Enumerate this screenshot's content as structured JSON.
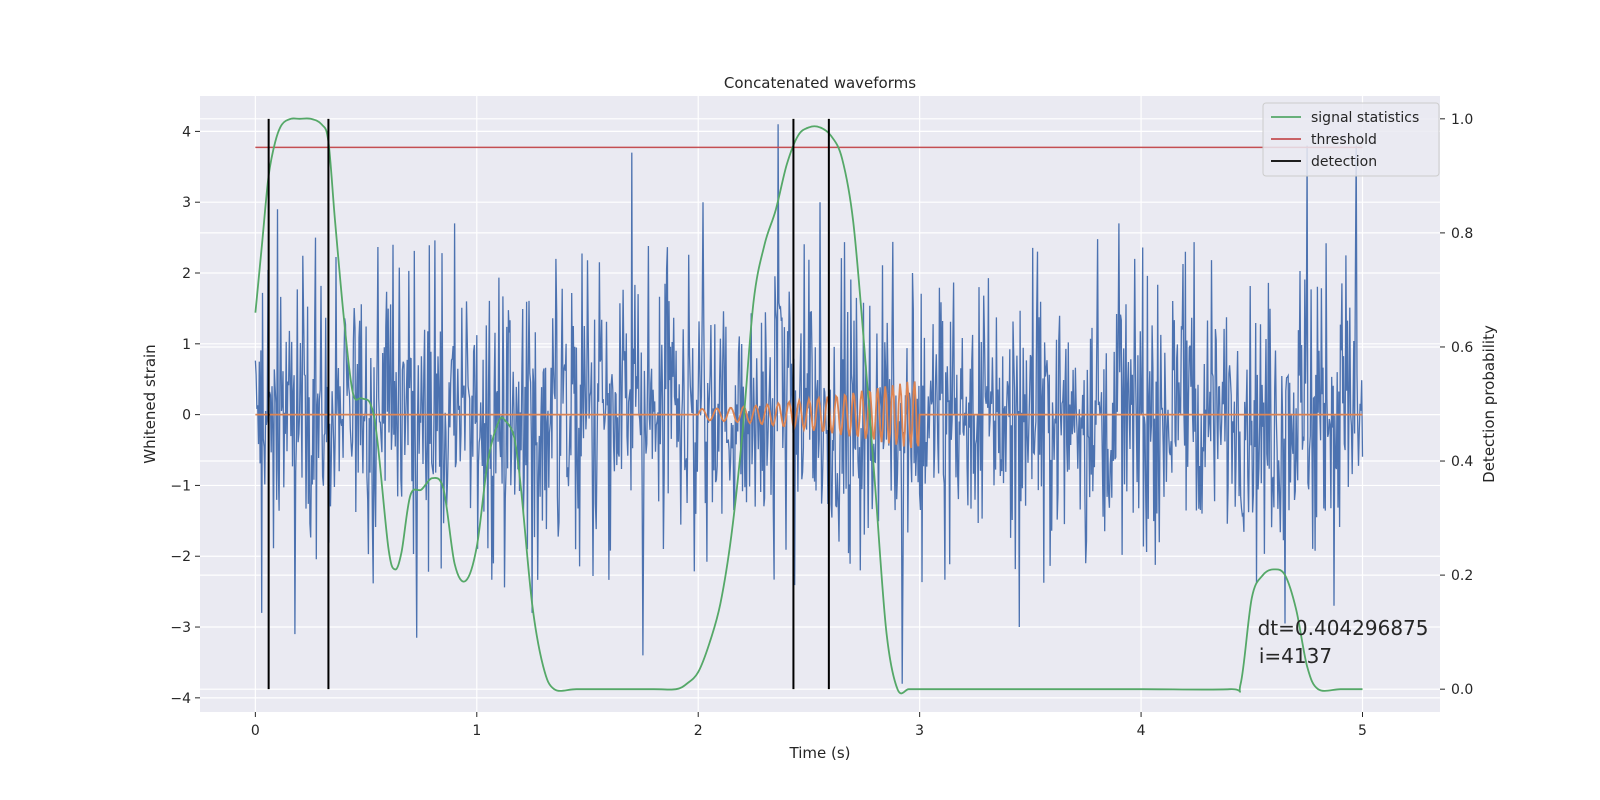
{
  "chart_data": {
    "type": "line",
    "title": "Concatenated waveforms",
    "xlabel": "Time (s)",
    "ylabel": "Whitened strain",
    "y2label": "Detection probability",
    "xlim": [
      -0.25,
      5.35
    ],
    "ylim": [
      -4.2,
      4.5
    ],
    "y2lim": [
      -0.04,
      1.04
    ],
    "xticks": [
      0,
      1,
      2,
      3,
      4,
      5
    ],
    "yticks": [
      -4,
      -3,
      -2,
      -1,
      0,
      1,
      2,
      3,
      4
    ],
    "y2ticks": [
      0.0,
      0.2,
      0.4,
      0.6,
      0.8,
      1.0
    ],
    "xtick_labels": [
      "0",
      "1",
      "2",
      "3",
      "4",
      "5"
    ],
    "ytick_labels": [
      "−4",
      "−3",
      "−2",
      "−1",
      "0",
      "1",
      "2",
      "3",
      "4"
    ],
    "y2tick_labels": [
      "0.0",
      "0.2",
      "0.4",
      "0.6",
      "0.8",
      "1.0"
    ],
    "grid": true,
    "legend_position": "top-right",
    "colors": {
      "background": "#eaeaf2",
      "grid": "#ffffff",
      "strain": "#4c72b0",
      "injected": "#dd8452",
      "signal_statistics": "#55a868",
      "threshold": "#c44e52",
      "detection": "#000000"
    },
    "series": [
      {
        "key": "strain",
        "axis": "left",
        "style": "noise",
        "x_range": [
          0,
          5
        ],
        "band_sigma": 0.75,
        "peaks_up": [
          [
            0.1,
            2.9
          ],
          [
            0.27,
            2.5
          ],
          [
            0.62,
            2.4
          ],
          [
            0.9,
            2.7
          ],
          [
            1.7,
            3.7
          ],
          [
            2.02,
            3.0
          ],
          [
            2.36,
            4.1
          ],
          [
            2.55,
            3.0
          ],
          [
            3.9,
            2.7
          ],
          [
            4.75,
            3.8
          ],
          [
            4.97,
            3.8
          ]
        ],
        "peaks_down": [
          [
            0.03,
            -2.8
          ],
          [
            0.18,
            -3.1
          ],
          [
            0.73,
            -3.15
          ],
          [
            1.25,
            -2.8
          ],
          [
            1.75,
            -3.4
          ],
          [
            2.92,
            -3.8
          ],
          [
            3.45,
            -3.0
          ],
          [
            4.65,
            -2.95
          ],
          [
            4.87,
            -2.7
          ]
        ]
      },
      {
        "key": "injected",
        "axis": "left",
        "style": "chirp",
        "x_range": [
          0,
          5
        ],
        "chirp_start": 2.0,
        "chirp_end": 3.0,
        "amplitude_start": 0.08,
        "amplitude_end": 0.5
      },
      {
        "name": "signal statistics",
        "key": "signal_statistics",
        "axis": "right",
        "x": [
          0.0,
          0.03,
          0.06,
          0.09,
          0.12,
          0.16,
          0.2,
          0.25,
          0.3,
          0.33,
          0.36,
          0.4,
          0.44,
          0.48,
          0.52,
          0.55,
          0.6,
          0.63,
          0.66,
          0.7,
          0.75,
          0.8,
          0.85,
          0.9,
          0.95,
          1.0,
          1.05,
          1.1,
          1.13,
          1.17,
          1.2,
          1.25,
          1.3,
          1.35,
          1.45,
          1.6,
          1.8,
          1.9,
          1.95,
          2.0,
          2.05,
          2.1,
          2.15,
          2.2,
          2.25,
          2.3,
          2.35,
          2.4,
          2.45,
          2.5,
          2.55,
          2.6,
          2.65,
          2.7,
          2.75,
          2.8,
          2.85,
          2.9,
          2.95,
          3.0,
          3.2,
          3.6,
          4.0,
          4.4,
          4.45,
          4.5,
          4.55,
          4.6,
          4.65,
          4.7,
          4.75,
          4.8,
          4.9,
          5.0
        ],
        "y": [
          0.66,
          0.78,
          0.9,
          0.96,
          0.99,
          1.0,
          1.0,
          1.0,
          0.99,
          0.96,
          0.82,
          0.65,
          0.52,
          0.51,
          0.5,
          0.44,
          0.25,
          0.21,
          0.24,
          0.34,
          0.35,
          0.37,
          0.35,
          0.22,
          0.19,
          0.25,
          0.4,
          0.47,
          0.47,
          0.44,
          0.35,
          0.15,
          0.04,
          0.0,
          0.0,
          0.0,
          0.0,
          0.0,
          0.01,
          0.03,
          0.08,
          0.15,
          0.27,
          0.45,
          0.68,
          0.78,
          0.84,
          0.92,
          0.97,
          0.985,
          0.985,
          0.97,
          0.93,
          0.82,
          0.6,
          0.35,
          0.1,
          0.0,
          0.0,
          0.0,
          0.0,
          0.0,
          0.0,
          0.0,
          0.01,
          0.16,
          0.2,
          0.21,
          0.2,
          0.14,
          0.04,
          0.0,
          0.0,
          0.0
        ]
      },
      {
        "name": "threshold",
        "key": "threshold",
        "axis": "right",
        "x": [
          0,
          5
        ],
        "y": [
          0.95,
          0.95
        ]
      },
      {
        "name": "detection",
        "key": "detection",
        "axis": "right",
        "style": "vlines",
        "x": [
          0.06,
          0.33,
          2.43,
          2.59
        ],
        "y_range": [
          0.0,
          1.0
        ]
      }
    ],
    "annotation": {
      "line1": "dt=0.404296875",
      "line2": " i=4137",
      "x": 5.0,
      "y": 0.1
    }
  }
}
